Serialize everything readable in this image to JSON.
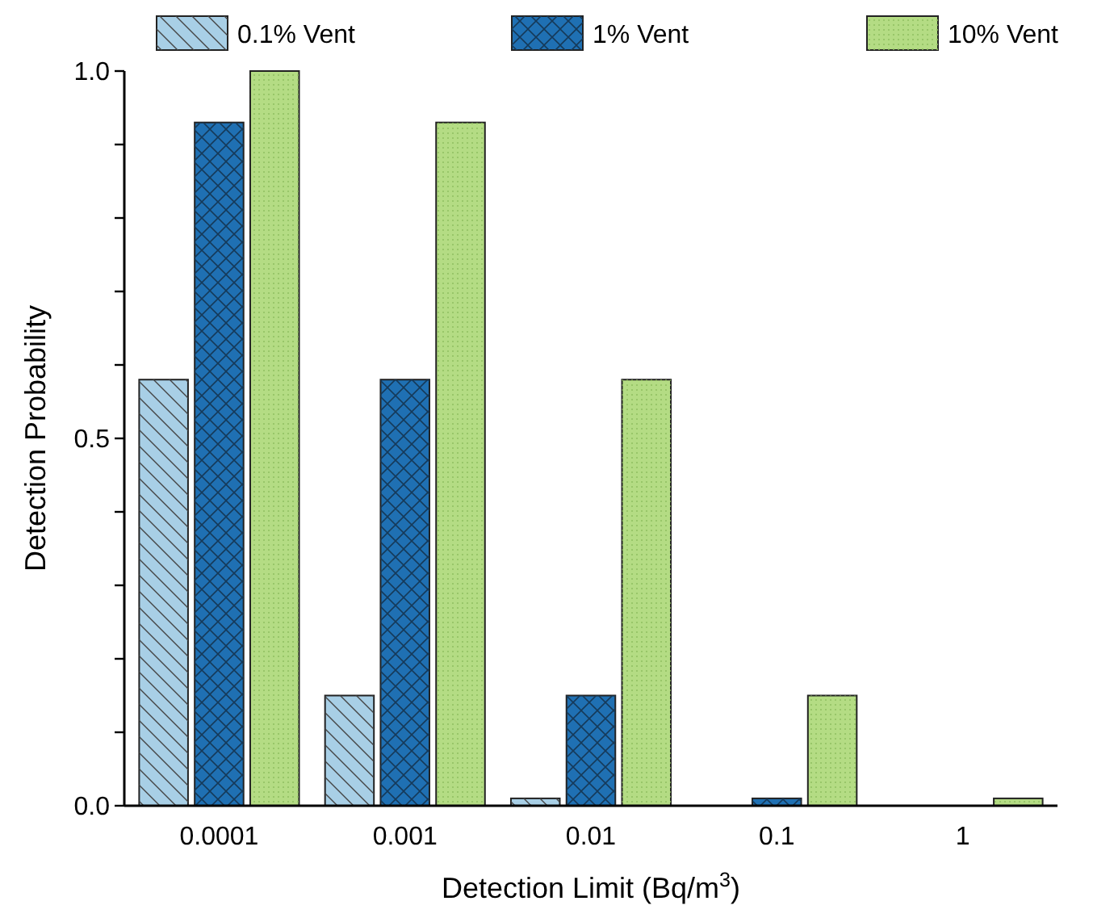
{
  "chart_data": {
    "type": "bar",
    "xlabel": "Detection Limit (Bq/m$^{3}$)",
    "ylabel": "Detection Probability",
    "categories": [
      "0.0001",
      "0.001",
      "0.01",
      "0.1",
      "1"
    ],
    "series": [
      {
        "name": "0.1% Vent",
        "color": "#a8cfe6",
        "values": [
          0.58,
          0.15,
          0.01,
          0,
          0
        ]
      },
      {
        "name": "1% Vent",
        "color": "#1f70b3",
        "values": [
          0.93,
          0.58,
          0.15,
          0.01,
          0
        ]
      },
      {
        "name": "10% Vent",
        "color": "#b4dc84",
        "values": [
          1.0,
          0.93,
          0.58,
          0.15,
          0.01
        ]
      }
    ],
    "ylim": [
      0,
      1
    ],
    "yticks": [
      {
        "value": 0,
        "label": "0.0"
      },
      {
        "value": 0.1,
        "label": null
      },
      {
        "value": 0.2,
        "label": null
      },
      {
        "value": 0.3,
        "label": null
      },
      {
        "value": 0.4,
        "label": null
      },
      {
        "value": 0.5,
        "label": "0.5"
      },
      {
        "value": 0.6,
        "label": null
      },
      {
        "value": 0.7,
        "label": null
      },
      {
        "value": 0.8,
        "label": null
      },
      {
        "value": 0.9,
        "label": null
      },
      {
        "value": 1,
        "label": "1.0"
      }
    ],
    "grid": false,
    "legend": "top"
  }
}
